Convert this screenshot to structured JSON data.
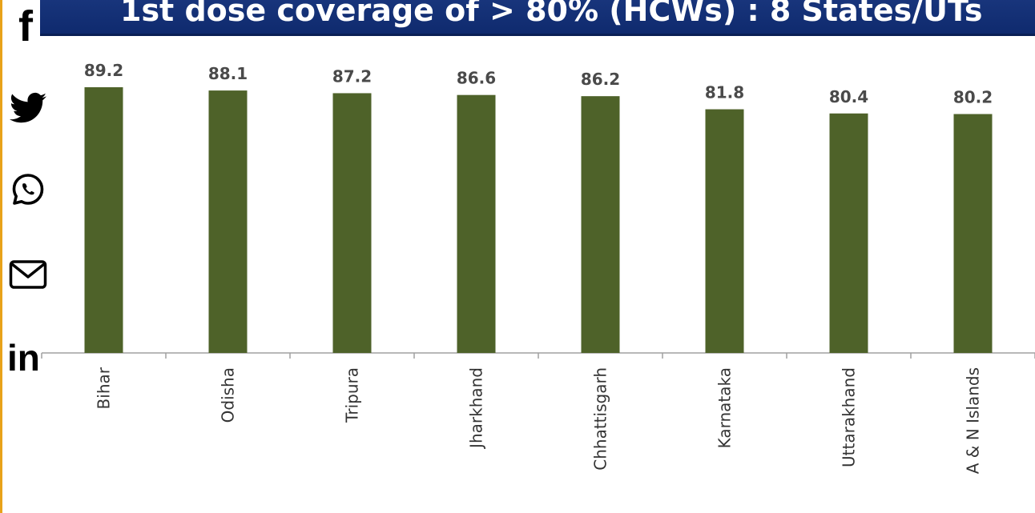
{
  "title": "1st dose coverage of > 80% (HCWs) : 8 States/UTs",
  "share": {
    "items": [
      {
        "name": "facebook-icon",
        "label": "f"
      },
      {
        "name": "twitter-icon",
        "label": ""
      },
      {
        "name": "whatsapp-icon",
        "label": ""
      },
      {
        "name": "email-icon",
        "label": ""
      },
      {
        "name": "linkedin-icon",
        "label": "in"
      }
    ]
  },
  "colors": {
    "bar": "#4e6229",
    "banner": "#13307a",
    "accent": "#e8a21a"
  },
  "chart_data": {
    "type": "bar",
    "title": "",
    "xlabel": "",
    "ylabel": "",
    "categories": [
      "Bihar",
      "Odisha",
      "Tripura",
      "Jharkhand",
      "Chhattisgarh",
      "Karnataka",
      "Uttarakhand",
      "A & N Islands"
    ],
    "values": [
      89.2,
      88.1,
      87.2,
      86.6,
      86.2,
      81.8,
      80.4,
      80.2
    ],
    "value_labels": [
      "89.2",
      "88.1",
      "87.2",
      "86.6",
      "86.2",
      "81.8",
      "80.4",
      "80.2"
    ],
    "ylim": [
      0,
      100
    ],
    "grid": false,
    "legend": "none"
  }
}
